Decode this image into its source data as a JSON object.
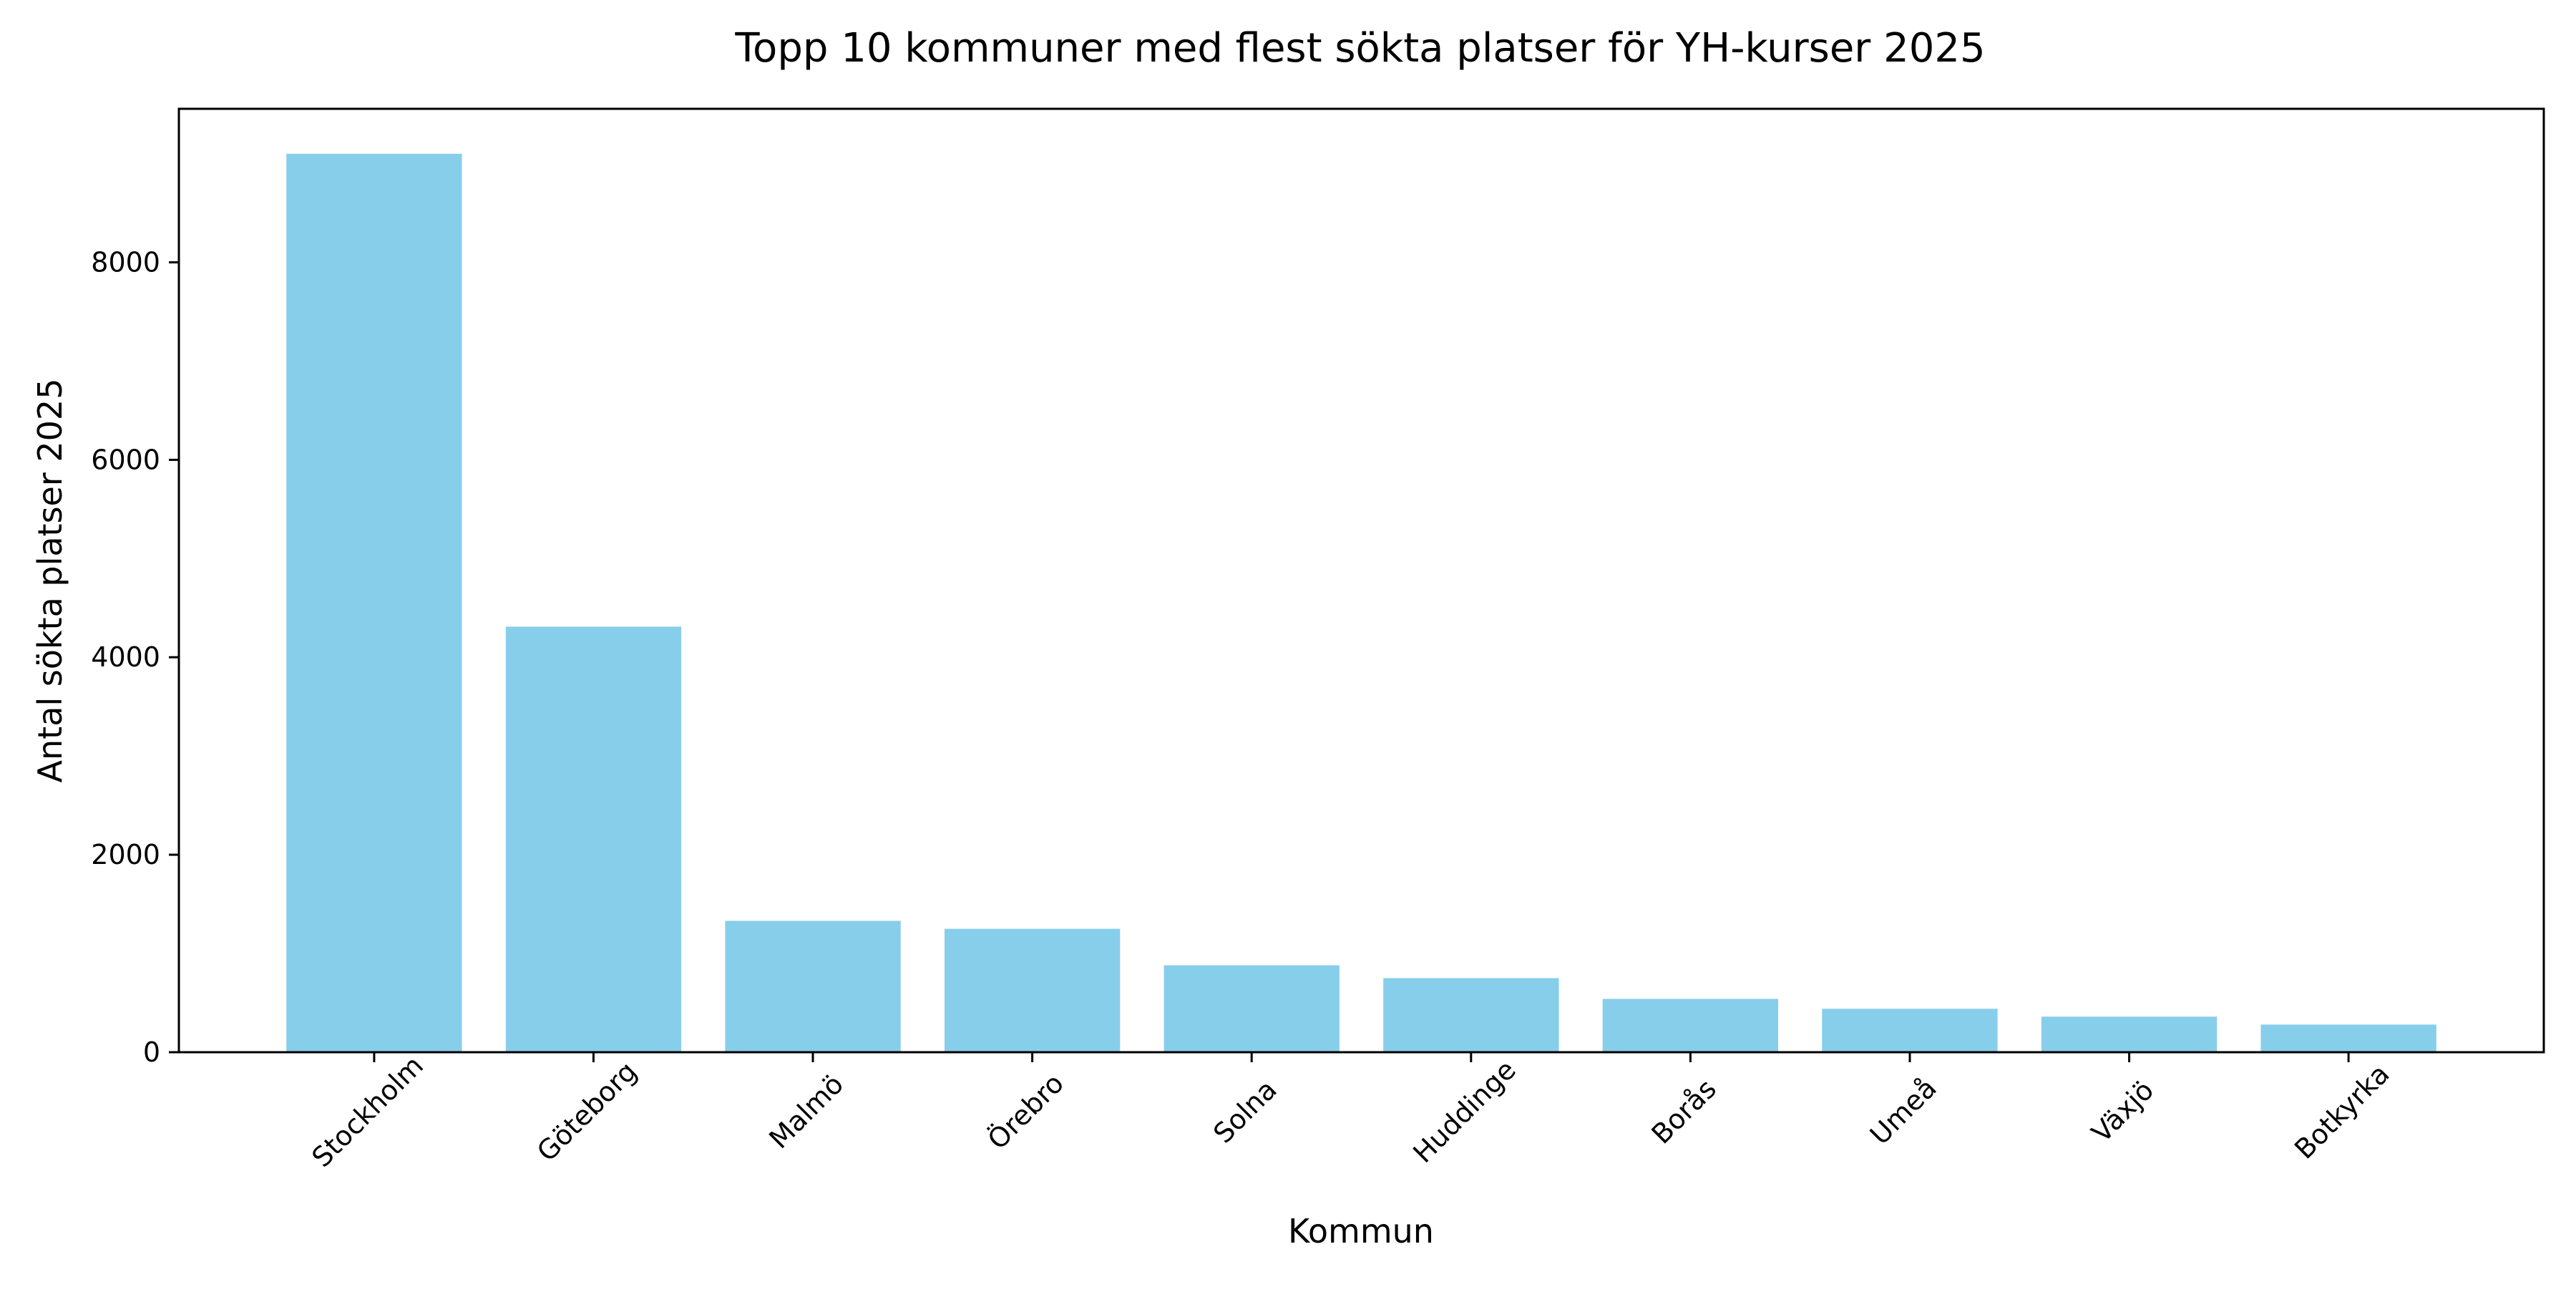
{
  "chart_data": {
    "type": "bar",
    "title": "Topp 10 kommuner med flest sökta platser för YH-kurser 2025",
    "xlabel": "Kommun",
    "ylabel": "Antal sökta platser 2025",
    "categories": [
      "Stockholm",
      "Göteborg",
      "Malmö",
      "Örebro",
      "Solna",
      "Huddinge",
      "Borås",
      "Umeå",
      "Växjö",
      "Botkyrka"
    ],
    "values": [
      9100,
      4310,
      1330,
      1250,
      880,
      750,
      540,
      440,
      360,
      280
    ],
    "ylim": [
      0,
      9555
    ],
    "yticks": [
      0,
      2000,
      4000,
      6000,
      8000
    ],
    "bar_color": "#87CEEB",
    "grid": false,
    "legend": "none"
  }
}
